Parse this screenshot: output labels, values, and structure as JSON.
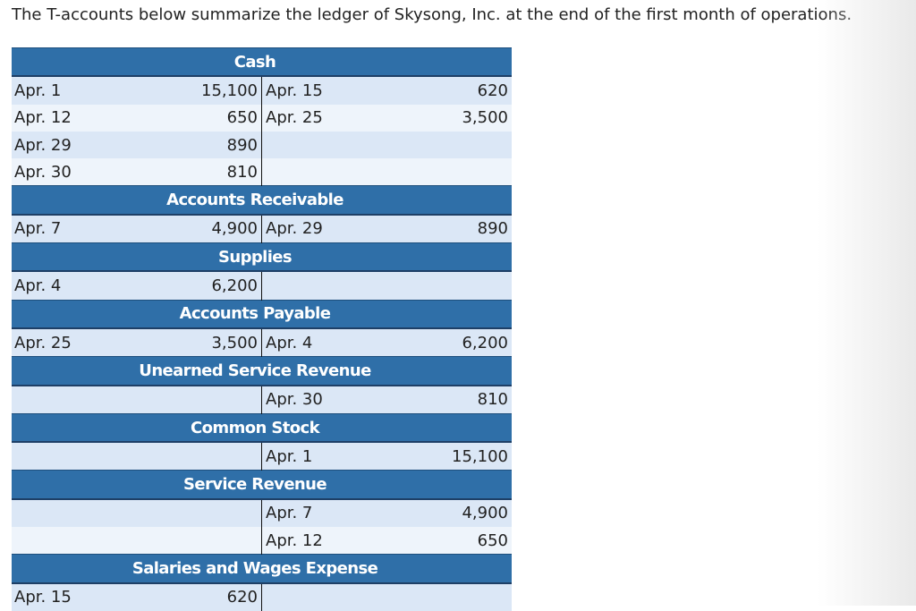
{
  "intro": "The T-accounts below summarize the ledger of Skysong, Inc. at the end of the first month of operations.",
  "accounts": [
    {
      "name": "Cash",
      "rows": [
        {
          "ld": "Apr. 1",
          "la": "15,100",
          "rd": "Apr. 15",
          "ra": "620"
        },
        {
          "ld": "Apr. 12",
          "la": "650",
          "rd": "Apr. 25",
          "ra": "3,500"
        },
        {
          "ld": "Apr. 29",
          "la": "890",
          "rd": "",
          "ra": ""
        },
        {
          "ld": "Apr. 30",
          "la": "810",
          "rd": "",
          "ra": ""
        }
      ]
    },
    {
      "name": "Accounts Receivable",
      "rows": [
        {
          "ld": "Apr. 7",
          "la": "4,900",
          "rd": "Apr. 29",
          "ra": "890"
        }
      ]
    },
    {
      "name": "Supplies",
      "rows": [
        {
          "ld": "Apr. 4",
          "la": "6,200",
          "rd": "",
          "ra": ""
        }
      ]
    },
    {
      "name": "Accounts Payable",
      "rows": [
        {
          "ld": "Apr. 25",
          "la": "3,500",
          "rd": "Apr. 4",
          "ra": "6,200"
        }
      ]
    },
    {
      "name": "Unearned Service Revenue",
      "rows": [
        {
          "ld": "",
          "la": "",
          "rd": "Apr. 30",
          "ra": "810"
        }
      ]
    },
    {
      "name": "Common Stock",
      "rows": [
        {
          "ld": "",
          "la": "",
          "rd": "Apr. 1",
          "ra": "15,100"
        }
      ]
    },
    {
      "name": "Service Revenue",
      "rows": [
        {
          "ld": "",
          "la": "",
          "rd": "Apr. 7",
          "ra": "4,900"
        },
        {
          "ld": "",
          "la": "",
          "rd": "Apr. 12",
          "ra": "650"
        }
      ]
    },
    {
      "name": "Salaries and Wages Expense",
      "rows": [
        {
          "ld": "Apr. 15",
          "la": "620",
          "rd": "",
          "ra": ""
        }
      ]
    }
  ]
}
